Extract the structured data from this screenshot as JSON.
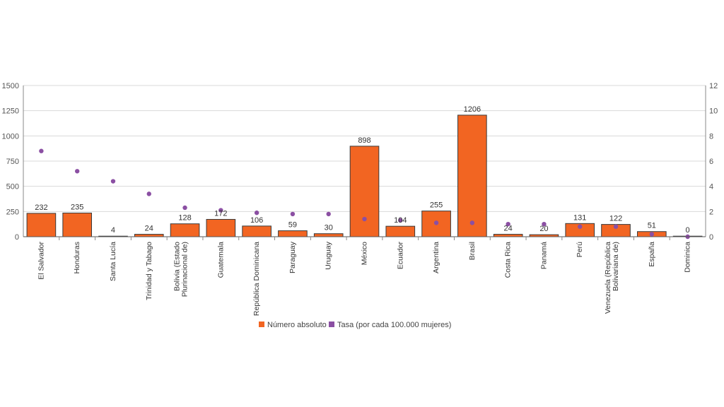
{
  "colors": {
    "bar": "#f26522",
    "bar_stroke": "#3a3a3a",
    "dot": "#8b4fa3",
    "grid": "#d9d9d9",
    "axis": "#888888"
  },
  "chart_data": {
    "type": "bar",
    "title": "",
    "xlabel": "",
    "ylabel": "",
    "y2label": "",
    "ylim": [
      0,
      1500
    ],
    "y_ticks": [
      0,
      250,
      500,
      750,
      1000,
      1250,
      1500
    ],
    "y2lim": [
      0,
      12
    ],
    "y2_ticks": [
      0,
      2,
      4,
      6,
      8,
      10,
      12
    ],
    "grid": true,
    "legend_position": "bottom",
    "categories": [
      [
        "El Salvador"
      ],
      [
        "Honduras"
      ],
      [
        "Santa Lucía"
      ],
      [
        "Trinidad y Tabago"
      ],
      [
        "Bolivia (Estado",
        "Plurinacional de)"
      ],
      [
        "Guatemala"
      ],
      [
        "República Dominicana"
      ],
      [
        "Paraguay"
      ],
      [
        "Uruguay"
      ],
      [
        "México"
      ],
      [
        "Ecuador"
      ],
      [
        "Argentina"
      ],
      [
        "Brasil"
      ],
      [
        "Costa Rica"
      ],
      [
        "Panamá"
      ],
      [
        "Perú"
      ],
      [
        "Venezuela (República",
        "Bolivariana de)"
      ],
      [
        "España"
      ],
      [
        "Dominica"
      ]
    ],
    "series": [
      {
        "name": "Número absoluto",
        "type": "bar",
        "axis": "left",
        "values": [
          232,
          235,
          4,
          24,
          128,
          172,
          106,
          59,
          30,
          898,
          104,
          255,
          1206,
          24,
          20,
          131,
          122,
          51,
          0
        ]
      },
      {
        "name": "Tasa (por cada 100.000 mujeres)",
        "type": "scatter",
        "axis": "right",
        "values": [
          6.8,
          5.2,
          4.4,
          3.4,
          2.3,
          2.1,
          1.9,
          1.8,
          1.8,
          1.4,
          1.3,
          1.1,
          1.1,
          1.0,
          1.0,
          0.8,
          0.8,
          0.2,
          0.0
        ]
      }
    ]
  }
}
